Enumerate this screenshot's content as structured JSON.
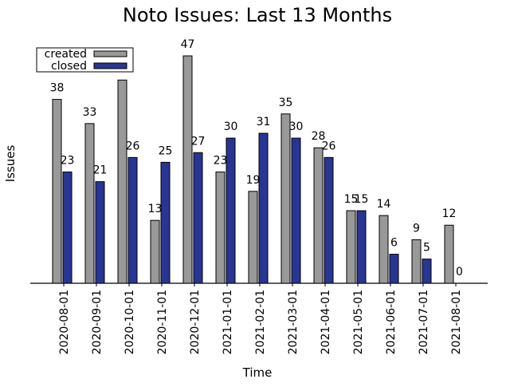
{
  "chart_data": {
    "type": "bar",
    "title": "Noto Issues: Last 13 Months",
    "xlabel": "Time",
    "ylabel": "Issues",
    "categories": [
      "2020-08-01",
      "2020-09-01",
      "2020-10-01",
      "2020-11-01",
      "2020-12-01",
      "2021-01-01",
      "2021-02-01",
      "2021-03-01",
      "2021-04-01",
      "2021-05-01",
      "2021-06-01",
      "2021-07-01",
      "2021-08-01"
    ],
    "series": [
      {
        "name": "created",
        "values": [
          38,
          33,
          42,
          13,
          47,
          23,
          19,
          35,
          28,
          15,
          14,
          9,
          12
        ],
        "color": "#999999"
      },
      {
        "name": "closed",
        "values": [
          23,
          21,
          26,
          25,
          27,
          30,
          31,
          30,
          26,
          15,
          6,
          5,
          0
        ],
        "color": "#283593"
      }
    ],
    "ylim": [
      0,
      50
    ],
    "grid": false,
    "legend_position": "top-left"
  }
}
